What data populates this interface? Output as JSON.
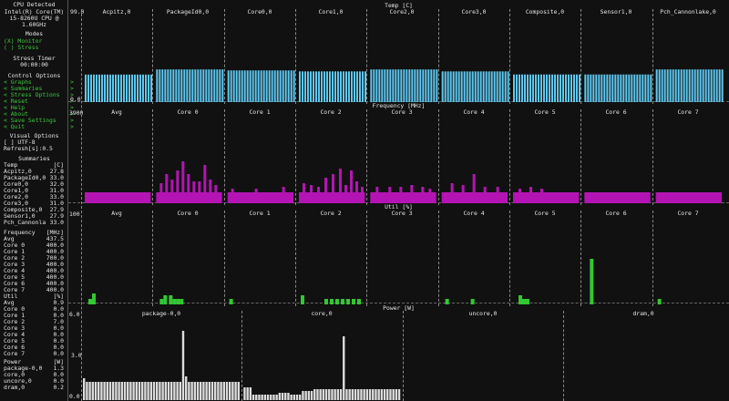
{
  "sidebar": {
    "cpu_title": "CPU Detected",
    "cpu_name_1": "Intel(R) Core(TM)",
    "cpu_name_2": "i5-8260U CPU @",
    "cpu_name_3": "1.60GHz",
    "modes_title": "Modes",
    "mode_monitor": "(X) Monitor",
    "mode_stress": "( ) Stress",
    "timer_title": "Stress Timer",
    "timer_value": "00:00:00",
    "control_title": "Control Options",
    "controls": [
      "< Graphs           >",
      "< Summaries        >",
      "< Stress Options   >",
      "< Reset            >",
      "< Help             >",
      "< About            >",
      "< Save Settings    >",
      "< Quit             >"
    ],
    "visual_title": "Visual Options",
    "visual_utf8": "[ ] UTF-8",
    "visual_refresh": "Refresh[s]:0.5",
    "summaries_title": "Summaries",
    "temp": {
      "header": "Temp",
      "unit": "[C]",
      "rows": [
        [
          "Acpitz,0",
          "27.8"
        ],
        [
          "PackageId0,0",
          "33.0"
        ],
        [
          "Core0,0",
          "32.0"
        ],
        [
          "Core1,0",
          "31.0"
        ],
        [
          "Core2,0",
          "33.0"
        ],
        [
          "Core3,0",
          "31.0"
        ],
        [
          "Composite,0",
          "27.9"
        ],
        [
          "Sensor1,0",
          "27.9"
        ],
        [
          "Pch_Cannonla",
          "33.0"
        ]
      ]
    },
    "freq": {
      "header": "Frequency",
      "unit": "[MHz]",
      "rows": [
        [
          "Avg",
          "437.5"
        ],
        [
          "Core 0",
          "400.0"
        ],
        [
          "Core 1",
          "400.0"
        ],
        [
          "Core 2",
          "700.0"
        ],
        [
          "Core 3",
          "400.0"
        ],
        [
          "Core 4",
          "400.0"
        ],
        [
          "Core 5",
          "400.0"
        ],
        [
          "Core 6",
          "400.0"
        ],
        [
          "Core 7",
          "400.0"
        ]
      ]
    },
    "util": {
      "header": "Util",
      "unit": "[%]",
      "rows": [
        [
          "Avg",
          "0.9"
        ],
        [
          "Core 0",
          "0.0"
        ],
        [
          "Core 1",
          "0.0"
        ],
        [
          "Core 2",
          "7.0"
        ],
        [
          "Core 3",
          "0.0"
        ],
        [
          "Core 4",
          "0.0"
        ],
        [
          "Core 5",
          "0.0"
        ],
        [
          "Core 6",
          "0.0"
        ],
        [
          "Core 7",
          "0.0"
        ]
      ]
    },
    "power": {
      "header": "Power",
      "unit": "[W]",
      "rows": [
        [
          "package-0,0",
          "1.3"
        ],
        [
          "core,0",
          "0.0"
        ],
        [
          "uncore,0",
          "0.0"
        ],
        [
          "dram,0",
          "0.2"
        ]
      ]
    }
  },
  "panels": {
    "temp": {
      "title": "Temp [C]",
      "axis_top": "99.0",
      "axis_bottom": "0.0",
      "columns": [
        "Acpitz,0",
        "PackageId0,0",
        "Core0,0",
        "Core1,0",
        "Core2,0",
        "Core3,0",
        "Composite,0",
        "Sensor1,0",
        "Pch_Cannonlake,0"
      ],
      "values": [
        27.8,
        33.0,
        32.0,
        31.0,
        33.0,
        31.0,
        27.9,
        27.9,
        33.0
      ],
      "max": 99.0,
      "color": "#5fc8f0"
    },
    "freq": {
      "title": "Frequency [MHz]",
      "axis_top": "3900",
      "columns": [
        "Avg",
        "Core 0",
        "Core 1",
        "Core 2",
        "Core 3",
        "Core 4",
        "Core 5",
        "Core 6",
        "Core 7"
      ],
      "color": "#b414b4"
    },
    "util": {
      "title": "Util [%]",
      "axis_top": "100",
      "columns": [
        "Avg",
        "Core 0",
        "Core 1",
        "Core 2",
        "Core 3",
        "Core 4",
        "Core 5",
        "Core 6",
        "Core 7"
      ],
      "color": "#32c832"
    },
    "power": {
      "title": "Power [W]",
      "axis_top": "6.0",
      "axis_mid": "3.0",
      "axis_bottom": "0.0",
      "columns": [
        "package-0,0",
        "core,0",
        "uncore,0",
        "dram,0"
      ],
      "color": "#dcdcdc"
    }
  },
  "colors": {
    "background": "#111111",
    "text": "#e6e6e6",
    "accent_green": "#3ec83e",
    "temp": "#5fc8f0",
    "freq": "#b414b4",
    "util": "#32c832",
    "power": "#dcdcdc"
  }
}
